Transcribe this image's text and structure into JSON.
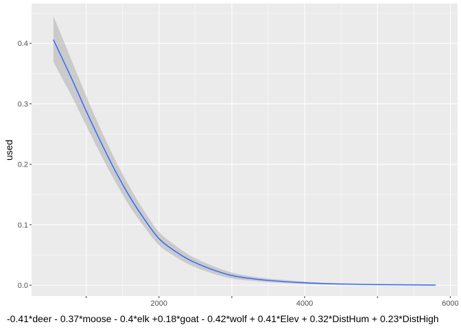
{
  "chart_data": {
    "type": "line",
    "title": "",
    "xlabel": "-0.41*deer - 0.37*moose - 0.4*elk +0.18*goat - 0.42*wolf + 0.41*Elev + 0.32*DistHum + 0.23*DistHigh",
    "ylabel": "used",
    "xlim": [
      250,
      6100
    ],
    "ylim": [
      -0.018,
      0.466
    ],
    "x_ticks": [
      1000,
      2000,
      3000,
      4000,
      5000,
      6000
    ],
    "x_tick_labels": [
      "",
      "2000",
      "",
      "4000",
      "",
      "6000"
    ],
    "y_ticks": [
      0.0,
      0.1,
      0.2,
      0.3,
      0.4
    ],
    "y_tick_labels": [
      "0.0",
      "0.1",
      "0.2",
      "0.3",
      "0.4"
    ],
    "grid": true,
    "legend": "none",
    "colors": {
      "panel": "#ebebeb",
      "grid": "#ffffff",
      "line": "#3366ff",
      "ribbon": "#999999"
    },
    "series": [
      {
        "x": [
          550,
          800,
          1000,
          1200,
          1400,
          1600,
          1800,
          2000,
          2200,
          2400,
          2600,
          2800,
          3000,
          3200,
          3500,
          4000,
          4500,
          5000,
          5500,
          5800
        ],
        "y": [
          0.406,
          0.342,
          0.288,
          0.237,
          0.189,
          0.146,
          0.109,
          0.077,
          0.058,
          0.043,
          0.032,
          0.023,
          0.016,
          0.012,
          0.008,
          0.004,
          0.002,
          0.001,
          0.0005,
          0.0003
        ],
        "ymin": [
          0.369,
          0.313,
          0.264,
          0.216,
          0.171,
          0.13,
          0.096,
          0.066,
          0.049,
          0.035,
          0.025,
          0.017,
          0.011,
          0.008,
          0.005,
          0.002,
          0.001,
          0.0005,
          0.0002,
          0.0001
        ],
        "ymax": [
          0.445,
          0.372,
          0.313,
          0.258,
          0.207,
          0.162,
          0.122,
          0.088,
          0.068,
          0.051,
          0.039,
          0.029,
          0.021,
          0.016,
          0.011,
          0.006,
          0.003,
          0.0015,
          0.0008,
          0.0005
        ]
      }
    ]
  }
}
